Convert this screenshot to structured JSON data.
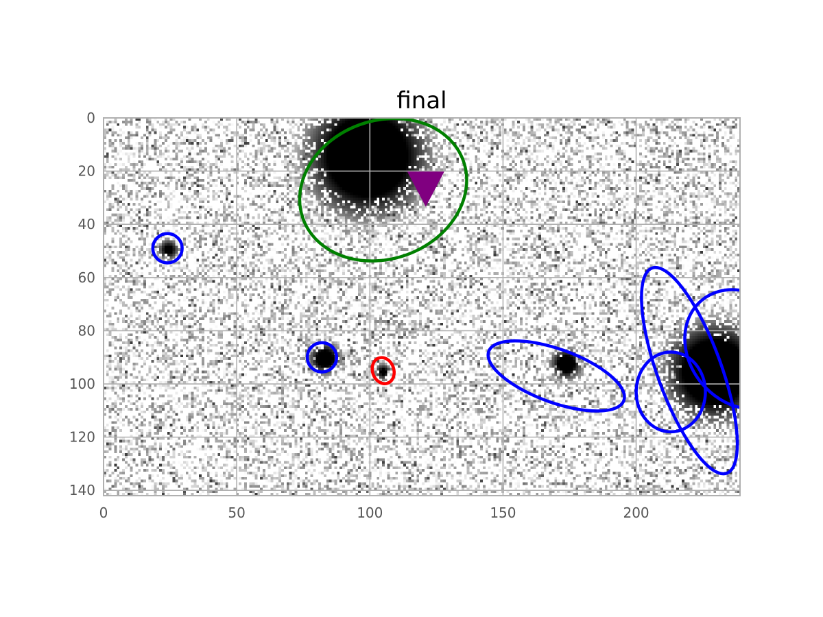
{
  "chart_data": {
    "type": "scatter",
    "title": "final",
    "xlabel": "",
    "ylabel": "",
    "xlim": [
      0,
      239
    ],
    "ylim": [
      142,
      0
    ],
    "y_inverted": true,
    "grid": true,
    "xticks": [
      0,
      50,
      100,
      150,
      200
    ],
    "yticks": [
      0,
      20,
      40,
      60,
      80,
      100,
      120,
      140
    ],
    "background": "grayscale astronomical image (inverted: sources dark on light noisy background)",
    "sources": [
      {
        "x": 99,
        "y": 14,
        "size": 15,
        "note": "large bright galaxy"
      },
      {
        "x": 24,
        "y": 49,
        "size": 1.5
      },
      {
        "x": 83,
        "y": 90,
        "size": 3
      },
      {
        "x": 105,
        "y": 95,
        "size": 1
      },
      {
        "x": 174,
        "y": 92,
        "size": 3
      },
      {
        "x": 230,
        "y": 95,
        "size": 12,
        "note": "bright source at right edge"
      }
    ],
    "ellipses": [
      {
        "color": "green",
        "cx": 105,
        "cy": 27,
        "a": 32,
        "b": 26,
        "angle": -20
      },
      {
        "color": "blue",
        "cx": 24,
        "cy": 49,
        "a": 5.5,
        "b": 5.5,
        "angle": 0
      },
      {
        "color": "blue",
        "cx": 82,
        "cy": 90,
        "a": 5.5,
        "b": 5.5,
        "angle": 0
      },
      {
        "color": "red",
        "cx": 105,
        "cy": 95,
        "a": 5,
        "b": 4,
        "angle": 70
      },
      {
        "color": "blue",
        "cx": 170,
        "cy": 97,
        "a": 27,
        "b": 10,
        "angle": 20
      },
      {
        "color": "blue",
        "cx": 220,
        "cy": 95,
        "a": 41,
        "b": 12,
        "angle": 70
      },
      {
        "color": "blue",
        "cx": 240,
        "cy": 87,
        "a": 24,
        "b": 20,
        "angle": 50
      },
      {
        "color": "blue",
        "cx": 213,
        "cy": 103,
        "a": 13,
        "b": 15,
        "angle": 0
      }
    ],
    "markers": [
      {
        "shape": "triangle-down",
        "color": "purple",
        "x": 121,
        "y": 24
      }
    ],
    "colors": {
      "green": "#008000",
      "blue": "#0000ff",
      "red": "#ff0000",
      "purple": "#800080",
      "grid": "#b0b0b0",
      "tick_label": "#555555"
    }
  }
}
